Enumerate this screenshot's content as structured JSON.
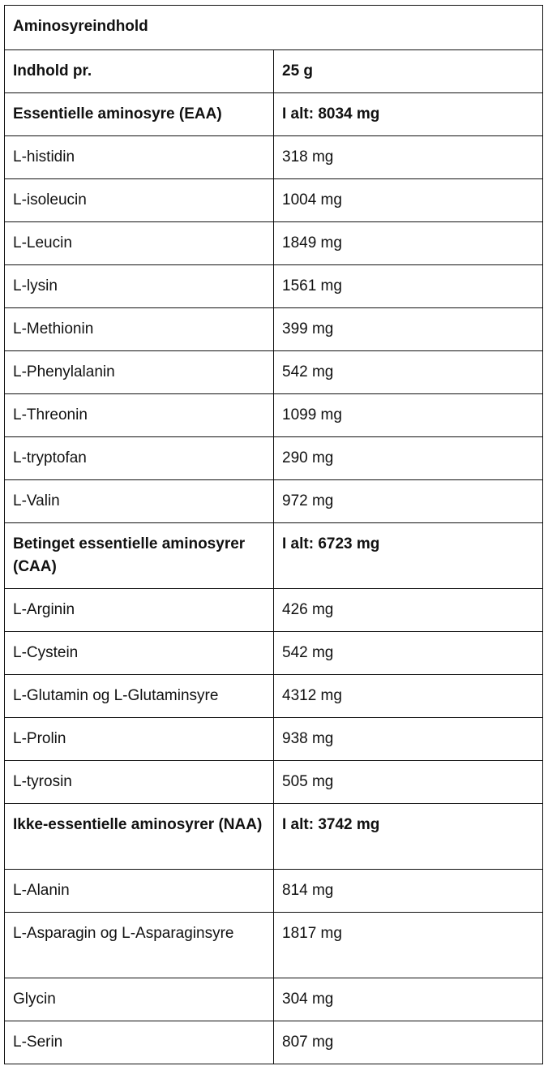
{
  "title": "Aminosyreindhold",
  "rows": [
    {
      "name": "Indhold pr.",
      "value": "25 g",
      "bold": true
    },
    {
      "name": "Essentielle aminosyre (EAA)",
      "value": "I alt: 8034 mg",
      "bold": true
    },
    {
      "name": "L-histidin",
      "value": "318 mg"
    },
    {
      "name": "L-isoleucin",
      "value": "1004 mg"
    },
    {
      "name": "L-Leucin",
      "value": "1849 mg"
    },
    {
      "name": "L-lysin",
      "value": "1561 mg"
    },
    {
      "name": "L-Methionin",
      "value": "399 mg"
    },
    {
      "name": "L-Phenylalanin",
      "value": "542 mg"
    },
    {
      "name": "L-Threonin",
      "value": "1099 mg"
    },
    {
      "name": "L-tryptofan",
      "value": "290 mg"
    },
    {
      "name": "L-Valin",
      "value": "972 mg"
    },
    {
      "name": "Betinget essentielle aminosyrer (CAA)",
      "value": "I alt: 6723 mg",
      "bold": true,
      "double": true
    },
    {
      "name": "L-Arginin",
      "value": "426 mg"
    },
    {
      "name": "L-Cystein",
      "value": "542 mg"
    },
    {
      "name": "L-Glutamin og L-Glutaminsyre",
      "value": "4312 mg"
    },
    {
      "name": "L-Prolin",
      "value": "938 mg"
    },
    {
      "name": "L-tyrosin",
      "value": "505 mg"
    },
    {
      "name": "Ikke-essentielle aminosyrer (NAA)",
      "value": "I alt: 3742 mg",
      "bold": true,
      "double": true
    },
    {
      "name": "L-Alanin",
      "value": "814 mg"
    },
    {
      "name": "L-Asparagin og L-Asparaginsyre",
      "value": "1817 mg",
      "double": true
    },
    {
      "name": "Glycin",
      "value": "304 mg"
    },
    {
      "name": "L-Serin",
      "value": "807 mg"
    }
  ]
}
